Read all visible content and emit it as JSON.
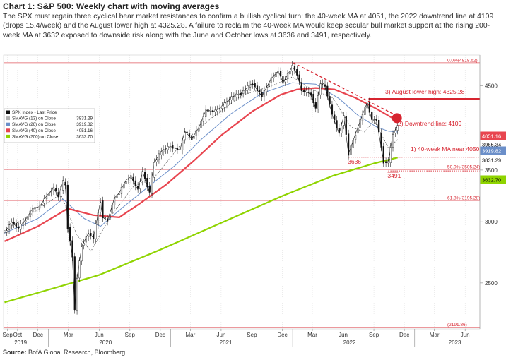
{
  "header": {
    "title": "Chart 1: S&P 500: Weekly chart with moving averages",
    "description": "The SPX must regain three cyclical bear market resistances to confirm a bullish cyclical turn: the 40-week MA at 4051, the 2022 downtrend line at 4109 (drops 15.4/week) and the August lower high at 4325.28. A failure to reclaim the 40-week MA would keep secular bull market support at the rising 200-week MA at 3632 exposed to downside risk along with the June and October lows at 3636 and 3491, respectively."
  },
  "footer": {
    "source_label": "Source:",
    "source_text": " BofA Global Research, Bloomberg"
  },
  "chart_data": {
    "type": "line",
    "title": "",
    "xlabel": "",
    "ylabel": "",
    "ylim": [
      2180,
      4930
    ],
    "y_scale": "log",
    "y_ticks": [
      2500,
      3000,
      3500,
      4500
    ],
    "x_ticks": [
      {
        "label": "Sep",
        "date": "2019-09-01"
      },
      {
        "label": "Oct",
        "date": "2019-10-01"
      },
      {
        "label": "Dec",
        "date": "2019-12-01"
      },
      {
        "label": "Mar",
        "date": "2020-03-01"
      },
      {
        "label": "Jun",
        "date": "2020-06-01"
      },
      {
        "label": "Sep",
        "date": "2020-09-01"
      },
      {
        "label": "Dec",
        "date": "2020-12-01"
      },
      {
        "label": "Mar",
        "date": "2021-03-01"
      },
      {
        "label": "Jun",
        "date": "2021-06-01"
      },
      {
        "label": "Sep",
        "date": "2021-09-01"
      },
      {
        "label": "Dec",
        "date": "2021-12-01"
      },
      {
        "label": "Mar",
        "date": "2022-03-01"
      },
      {
        "label": "Jun",
        "date": "2022-06-01"
      },
      {
        "label": "Sep",
        "date": "2022-09-01"
      },
      {
        "label": "Dec",
        "date": "2022-12-01"
      },
      {
        "label": "Mar",
        "date": "2023-03-01"
      },
      {
        "label": "Jun",
        "date": "2023-06-01"
      }
    ],
    "year_labels": [
      {
        "label": "2019",
        "date": "2019-10-10"
      },
      {
        "label": "2020",
        "date": "2020-06-20"
      },
      {
        "label": "2021",
        "date": "2021-06-15"
      },
      {
        "label": "2022",
        "date": "2022-06-20"
      },
      {
        "label": "2023",
        "date": "2023-05-01"
      }
    ],
    "legend": {
      "placement": "top-left",
      "entries": [
        {
          "name": "SPX Index - Last Price",
          "value": "",
          "color": "#111111"
        },
        {
          "name": "SMAVG (13)  on Close",
          "value": "3831.29",
          "color": "#b0b0b0"
        },
        {
          "name": "SMAVG (26)  on Close",
          "value": "3919.82",
          "color": "#6b8fc9"
        },
        {
          "name": "SMAVG (40)  on Close",
          "value": "4051.16",
          "color": "#e8454f"
        },
        {
          "name": "SMAVG (200)  on Close",
          "value": "3632.70",
          "color": "#8fd400"
        }
      ]
    },
    "series": [
      {
        "name": "SPX Index - Last Price",
        "color": "#111111",
        "style": "candle",
        "points": [
          [
            "2019-08-23",
            2900
          ],
          [
            "2019-09-13",
            3000
          ],
          [
            "2019-10-04",
            2940
          ],
          [
            "2019-10-25",
            3020
          ],
          [
            "2019-11-15",
            3120
          ],
          [
            "2019-12-06",
            3140
          ],
          [
            "2019-12-27",
            3240
          ],
          [
            "2020-01-17",
            3320
          ],
          [
            "2020-01-31",
            3230
          ],
          [
            "2020-02-14",
            3380
          ],
          [
            "2020-02-21",
            3340
          ],
          [
            "2020-02-28",
            2950
          ],
          [
            "2020-03-13",
            2710
          ],
          [
            "2020-03-20",
            2300
          ],
          [
            "2020-03-27",
            2540
          ],
          [
            "2020-04-10",
            2790
          ],
          [
            "2020-04-30",
            2900
          ],
          [
            "2020-05-15",
            2860
          ],
          [
            "2020-06-05",
            3190
          ],
          [
            "2020-06-12",
            3040
          ],
          [
            "2020-06-26",
            3010
          ],
          [
            "2020-07-17",
            3220
          ],
          [
            "2020-07-31",
            3270
          ],
          [
            "2020-08-21",
            3400
          ],
          [
            "2020-09-04",
            3430
          ],
          [
            "2020-09-25",
            3300
          ],
          [
            "2020-10-09",
            3480
          ],
          [
            "2020-10-30",
            3270
          ],
          [
            "2020-11-13",
            3580
          ],
          [
            "2020-12-04",
            3700
          ],
          [
            "2020-12-31",
            3756
          ],
          [
            "2021-01-29",
            3714
          ],
          [
            "2021-02-12",
            3930
          ],
          [
            "2021-03-05",
            3840
          ],
          [
            "2021-03-26",
            3970
          ],
          [
            "2021-04-16",
            4180
          ],
          [
            "2021-05-14",
            4170
          ],
          [
            "2021-06-04",
            4230
          ],
          [
            "2021-07-02",
            4350
          ],
          [
            "2021-07-30",
            4400
          ],
          [
            "2021-08-27",
            4510
          ],
          [
            "2021-09-03",
            4530
          ],
          [
            "2021-10-01",
            4360
          ],
          [
            "2021-10-29",
            4600
          ],
          [
            "2021-11-19",
            4700
          ],
          [
            "2021-12-03",
            4540
          ],
          [
            "2021-12-31",
            4766
          ],
          [
            "2022-01-14",
            4660
          ],
          [
            "2022-01-28",
            4430
          ],
          [
            "2022-02-11",
            4420
          ],
          [
            "2022-02-25",
            4380
          ],
          [
            "2022-03-11",
            4200
          ],
          [
            "2022-03-25",
            4540
          ],
          [
            "2022-04-08",
            4490
          ],
          [
            "2022-04-29",
            4130
          ],
          [
            "2022-05-20",
            3900
          ],
          [
            "2022-06-03",
            4110
          ],
          [
            "2022-06-17",
            3670
          ],
          [
            "2022-07-08",
            3900
          ],
          [
            "2022-07-29",
            4130
          ],
          [
            "2022-08-12",
            4280
          ],
          [
            "2022-08-26",
            4060
          ],
          [
            "2022-09-09",
            4070
          ],
          [
            "2022-09-30",
            3585
          ],
          [
            "2022-10-14",
            3580
          ],
          [
            "2022-10-28",
            3900
          ],
          [
            "2022-11-11",
            3990
          ]
        ]
      },
      {
        "name": "SMAVG (13)  on Close",
        "color": "#b0b0b0",
        "style": "dotted",
        "points": [
          [
            "2019-08-23",
            2920
          ],
          [
            "2019-12-01",
            3110
          ],
          [
            "2020-02-07",
            3260
          ],
          [
            "2020-03-27",
            2880
          ],
          [
            "2020-05-08",
            2750
          ],
          [
            "2020-07-03",
            3040
          ],
          [
            "2020-09-11",
            3330
          ],
          [
            "2020-11-20",
            3450
          ],
          [
            "2021-02-01",
            3780
          ],
          [
            "2021-05-01",
            4080
          ],
          [
            "2021-08-01",
            4370
          ],
          [
            "2021-11-01",
            4500
          ],
          [
            "2021-12-31",
            4620
          ],
          [
            "2022-03-01",
            4450
          ],
          [
            "2022-05-01",
            4340
          ],
          [
            "2022-06-24",
            3980
          ],
          [
            "2022-08-05",
            3920
          ],
          [
            "2022-09-02",
            4060
          ],
          [
            "2022-10-14",
            3740
          ],
          [
            "2022-11-11",
            3831
          ]
        ]
      },
      {
        "name": "SMAVG (26)  on Close",
        "color": "#6b8fc9",
        "style": "line",
        "points": [
          [
            "2019-08-23",
            2900
          ],
          [
            "2019-12-01",
            3030
          ],
          [
            "2020-02-14",
            3210
          ],
          [
            "2020-04-17",
            3030
          ],
          [
            "2020-06-05",
            2960
          ],
          [
            "2020-08-14",
            3140
          ],
          [
            "2020-10-30",
            3340
          ],
          [
            "2021-01-15",
            3550
          ],
          [
            "2021-04-01",
            3830
          ],
          [
            "2021-07-01",
            4140
          ],
          [
            "2021-10-01",
            4400
          ],
          [
            "2021-12-31",
            4540
          ],
          [
            "2022-03-11",
            4520
          ],
          [
            "2022-05-20",
            4330
          ],
          [
            "2022-07-15",
            4120
          ],
          [
            "2022-09-09",
            3980
          ],
          [
            "2022-10-14",
            3930
          ],
          [
            "2022-11-11",
            3920
          ]
        ]
      },
      {
        "name": "SMAVG (40)  on Close",
        "color": "#e8454f",
        "style": "line",
        "points": [
          [
            "2019-08-23",
            2830
          ],
          [
            "2019-12-01",
            2960
          ],
          [
            "2020-02-28",
            3120
          ],
          [
            "2020-05-15",
            3060
          ],
          [
            "2020-07-31",
            3040
          ],
          [
            "2020-10-02",
            3170
          ],
          [
            "2020-12-18",
            3350
          ],
          [
            "2021-03-12",
            3600
          ],
          [
            "2021-06-04",
            3890
          ],
          [
            "2021-09-03",
            4170
          ],
          [
            "2021-11-26",
            4380
          ],
          [
            "2022-01-14",
            4450
          ],
          [
            "2022-03-11",
            4470
          ],
          [
            "2022-05-06",
            4450
          ],
          [
            "2022-07-08",
            4340
          ],
          [
            "2022-09-09",
            4200
          ],
          [
            "2022-11-11",
            4051
          ]
        ]
      },
      {
        "name": "SMAVG (200)  on Close",
        "color": "#8fd400",
        "style": "line",
        "points": [
          [
            "2019-08-23",
            2360
          ],
          [
            "2020-01-01",
            2450
          ],
          [
            "2020-06-01",
            2560
          ],
          [
            "2020-12-01",
            2760
          ],
          [
            "2021-06-01",
            2990
          ],
          [
            "2021-12-01",
            3240
          ],
          [
            "2022-05-01",
            3440
          ],
          [
            "2022-09-01",
            3570
          ],
          [
            "2022-11-11",
            3632
          ]
        ]
      }
    ],
    "reference_lines": [
      {
        "label": "0.0%(4818.62)",
        "value": 4818.62,
        "color": "#e05a60",
        "style": "thin"
      },
      {
        "label": "50.0%(3505.24)",
        "value": 3505.24,
        "color": "#e05a60",
        "style": "thin"
      },
      {
        "label": "61.8%(3195.28)",
        "value": 3195.28,
        "color": "#e05a60",
        "style": "thin"
      },
      {
        "label": "(2191.86)",
        "value": 2191.86,
        "color": "#e05a60",
        "style": "thin"
      },
      {
        "label": "3) August lower high: 4325.28",
        "value": 4325.28,
        "color": "#d7242f",
        "style": "thick",
        "from": "2022-08-16"
      },
      {
        "label": "3636",
        "value": 3636,
        "color": "#d7242f",
        "style": "dotted",
        "from": "2022-06-17"
      },
      {
        "label": "3491",
        "value": 3491,
        "color": "#d7242f",
        "style": "dotted",
        "from": "2022-10-14"
      }
    ],
    "trendline": {
      "label": "2) Downtrend line: 4109",
      "color": "#d7242f",
      "style": "dashed",
      "from": [
        "2022-01-03",
        4818
      ],
      "to": [
        "2022-11-25",
        4080
      ]
    },
    "marker": {
      "label": "1) 40-week MA near 4050",
      "date": "2022-11-11",
      "value": 4051,
      "color": "#d7242f"
    },
    "right_tags": [
      {
        "value": 4051.16,
        "text": "4051.16",
        "bg": "#e8454f",
        "fg": "#ffffff"
      },
      {
        "value": 3965.34,
        "text": "3965.34",
        "bg": "#ffffff",
        "fg": "#111111"
      },
      {
        "value": 3919.82,
        "text": "3919.82",
        "bg": "#6b8fc9",
        "fg": "#ffffff"
      },
      {
        "value": 3831.29,
        "text": "3831.29",
        "bg": "#ffffff",
        "fg": "#111111"
      },
      {
        "value": 3632.7,
        "text": "3632.70",
        "bg": "#8fd400",
        "fg": "#111111"
      }
    ]
  }
}
